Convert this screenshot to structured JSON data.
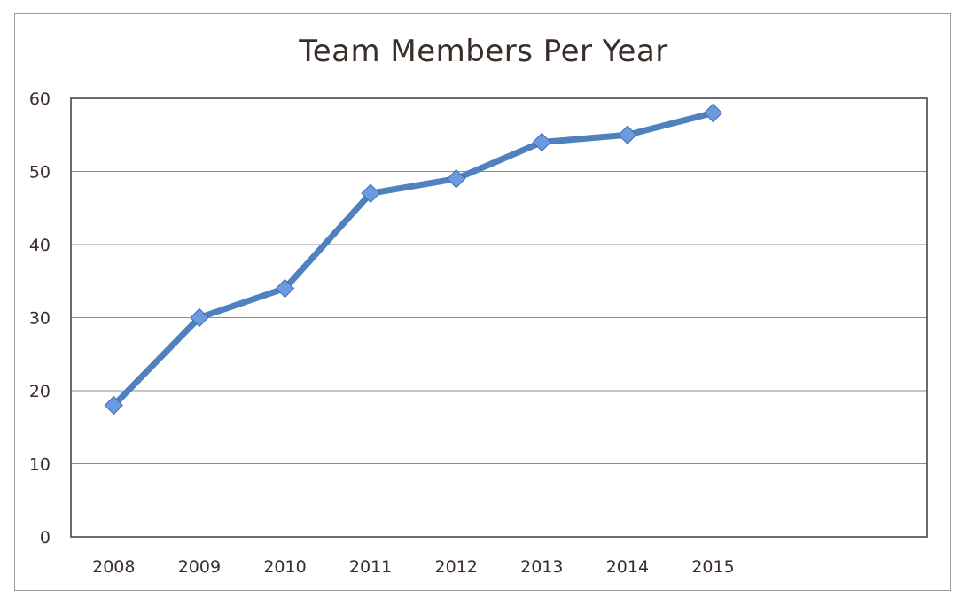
{
  "chart_data": {
    "type": "line",
    "title": "Team Members Per Year",
    "xlabel": "",
    "ylabel": "",
    "categories": [
      "2008",
      "2009",
      "2010",
      "2011",
      "2012",
      "2013",
      "2014",
      "2015"
    ],
    "series": [
      {
        "values": [
          18,
          30,
          34,
          47,
          49,
          54,
          55,
          58
        ],
        "color": "#4f81bd",
        "marker": "diamond",
        "marker_color": "#6a9be0"
      }
    ],
    "ylim": [
      0,
      60
    ],
    "yticks": [
      0,
      10,
      20,
      30,
      40,
      50,
      60
    ],
    "grid": true,
    "legend": "none"
  }
}
